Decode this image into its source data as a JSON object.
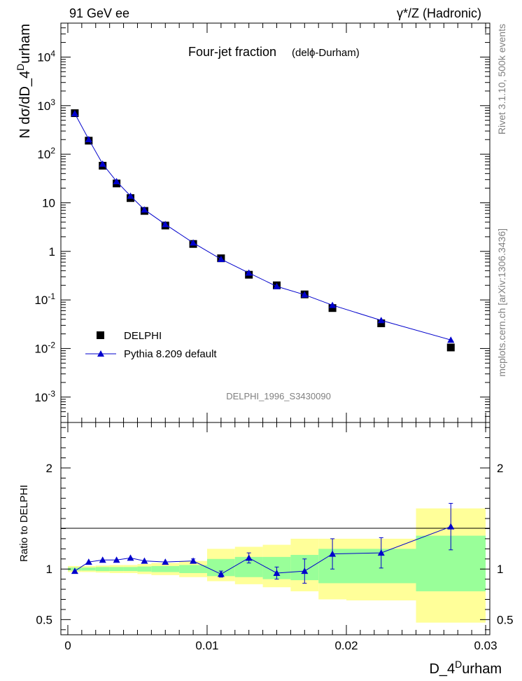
{
  "header": {
    "left": "91 GeV ee",
    "right": "γ*/Z (Hadronic)"
  },
  "side_labels": {
    "rivet": "Rivet 3.1.10,  500k events",
    "mcplots": "mcplots.cern.ch [arXiv:1306.3436]"
  },
  "chart_data": [
    {
      "type": "scatter",
      "title": "Four-jet fraction",
      "subtitle": "(delϕ-Durham)",
      "ylabel": "N dσ/dD_4^Durham",
      "yscale": "log",
      "ylim": [
        0.0003,
        50000
      ],
      "xlim": [
        -0.0005,
        0.0303
      ],
      "y_tick_labels": [
        "10^-3",
        "10^-2",
        "10^-1",
        "1",
        "10",
        "10^2",
        "10^3",
        "10^4"
      ],
      "watermark": "DELPHI_1996_S3430090",
      "legend_position": "lower-left",
      "series": [
        {
          "name": "DELPHI",
          "color": "#000000",
          "marker": "square",
          "x": [
            0.0005,
            0.0015,
            0.0025,
            0.0035,
            0.0045,
            0.0055,
            0.007,
            0.009,
            0.011,
            0.013,
            0.015,
            0.017,
            0.019,
            0.0225,
            0.0275
          ],
          "y": [
            700,
            190,
            58,
            25,
            12.5,
            6.8,
            3.4,
            1.42,
            0.72,
            0.33,
            0.2,
            0.13,
            0.068,
            0.033,
            0.0105
          ]
        },
        {
          "name": "Pythia 8.209 default",
          "color": "#0000cc",
          "marker": "triangle",
          "x": [
            0.0005,
            0.0015,
            0.0025,
            0.0035,
            0.0045,
            0.0055,
            0.007,
            0.009,
            0.011,
            0.013,
            0.015,
            0.017,
            0.019,
            0.0225,
            0.0275
          ],
          "y": [
            690,
            202,
            63,
            27.5,
            13.8,
            7.2,
            3.6,
            1.5,
            0.69,
            0.36,
            0.19,
            0.128,
            0.078,
            0.038,
            0.015
          ]
        }
      ]
    },
    {
      "type": "scatter",
      "ylabel": "Ratio to DELPHI",
      "xlabel": "D_4^Durham",
      "ylim": [
        0.35,
        2.45
      ],
      "xlim": [
        -0.0005,
        0.0303
      ],
      "x_ticks": [
        0,
        0.01,
        0.02,
        0.03
      ],
      "x_tick_labels": [
        "0",
        "0.01",
        "0.02",
        "0.03"
      ],
      "y_ticks": [
        0.5,
        1,
        2
      ],
      "y_tick_labels": [
        "0.5",
        "1",
        "2"
      ],
      "bins": [
        [
          0,
          0.001
        ],
        [
          0.001,
          0.002
        ],
        [
          0.002,
          0.003
        ],
        [
          0.003,
          0.004
        ],
        [
          0.004,
          0.005
        ],
        [
          0.005,
          0.006
        ],
        [
          0.006,
          0.008
        ],
        [
          0.008,
          0.01
        ],
        [
          0.01,
          0.012
        ],
        [
          0.012,
          0.014
        ],
        [
          0.014,
          0.016
        ],
        [
          0.016,
          0.018
        ],
        [
          0.018,
          0.02
        ],
        [
          0.02,
          0.025
        ],
        [
          0.025,
          0.03
        ]
      ],
      "band_yellow": [
        [
          0.97,
          1.03
        ],
        [
          0.97,
          1.03
        ],
        [
          0.965,
          1.035
        ],
        [
          0.96,
          1.04
        ],
        [
          0.96,
          1.04
        ],
        [
          0.95,
          1.05
        ],
        [
          0.94,
          1.06
        ],
        [
          0.92,
          1.08
        ],
        [
          0.88,
          1.2
        ],
        [
          0.85,
          1.22
        ],
        [
          0.82,
          1.24
        ],
        [
          0.78,
          1.3
        ],
        [
          0.7,
          1.3
        ],
        [
          0.69,
          1.3
        ],
        [
          0.47,
          1.6
        ]
      ],
      "band_green": [
        [
          0.985,
          1.015
        ],
        [
          0.985,
          1.015
        ],
        [
          0.98,
          1.02
        ],
        [
          0.98,
          1.02
        ],
        [
          0.98,
          1.02
        ],
        [
          0.975,
          1.025
        ],
        [
          0.97,
          1.03
        ],
        [
          0.96,
          1.04
        ],
        [
          0.93,
          1.1
        ],
        [
          0.92,
          1.12
        ],
        [
          0.9,
          1.12
        ],
        [
          0.89,
          1.14
        ],
        [
          0.86,
          1.2
        ],
        [
          0.86,
          1.2
        ],
        [
          0.78,
          1.33
        ]
      ],
      "series": [
        {
          "name": "Pythia 8.209 default",
          "color": "#0000cc",
          "x": [
            0.0005,
            0.0015,
            0.0025,
            0.0035,
            0.0045,
            0.0055,
            0.007,
            0.009,
            0.011,
            0.013,
            0.015,
            0.017,
            0.019,
            0.0225,
            0.0275
          ],
          "y": [
            0.98,
            1.07,
            1.09,
            1.09,
            1.11,
            1.08,
            1.07,
            1.08,
            0.95,
            1.11,
            0.96,
            0.98,
            1.15,
            1.16,
            1.42
          ],
          "yerr": [
            0.005,
            0.005,
            0.005,
            0.005,
            0.005,
            0.01,
            0.01,
            0.02,
            0.03,
            0.05,
            0.06,
            0.12,
            0.15,
            0.15,
            0.23
          ]
        }
      ]
    }
  ]
}
